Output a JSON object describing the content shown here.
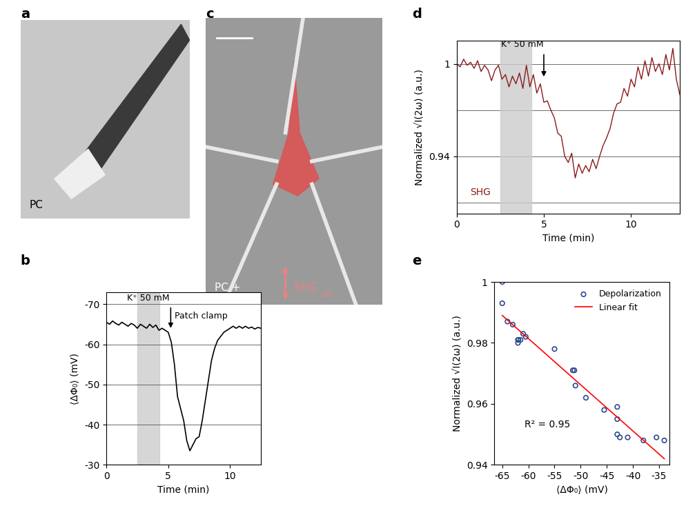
{
  "chart_data": [
    {
      "type": "line",
      "panel": "b",
      "x_label": "Time (min)",
      "y_label": "⟨ΔΦ₀⟩ (mV)",
      "x": [
        0,
        0.25,
        0.5,
        0.75,
        1,
        1.25,
        1.5,
        1.75,
        2,
        2.25,
        2.5,
        2.75,
        3,
        3.25,
        3.5,
        3.75,
        4,
        4.25,
        4.5,
        4.75,
        5,
        5.25,
        5.5,
        5.75,
        6,
        6.25,
        6.5,
        6.75,
        7,
        7.25,
        7.5,
        7.75,
        8,
        8.25,
        8.5,
        8.75,
        9,
        9.25,
        9.5,
        9.75,
        10,
        10.25,
        10.5,
        10.75,
        11,
        11.25,
        11.5,
        11.75,
        12,
        12.25,
        12.5
      ],
      "values": [
        -65.5,
        -65,
        -65.8,
        -65.2,
        -64.8,
        -65.5,
        -65,
        -64.5,
        -65.2,
        -64.8,
        -64,
        -65,
        -64.5,
        -64,
        -65,
        -64.2,
        -64.8,
        -63.5,
        -64,
        -63.5,
        -63,
        -60.5,
        -55,
        -47,
        -44,
        -41,
        -36,
        -33.5,
        -35,
        -36.5,
        -37,
        -41,
        -46,
        -51,
        -56,
        -59,
        -61,
        -62,
        -63,
        -63.5,
        -64,
        -64.5,
        -64,
        -64.5,
        -64,
        -64.5,
        -64,
        -64.3,
        -63.8,
        -64.2,
        -64
      ],
      "color": "#000000",
      "xlim": [
        0,
        12.5
      ],
      "xticks": [
        0,
        5,
        10
      ],
      "ylim": [
        -30,
        -73
      ],
      "yticks": [
        -70,
        -60,
        -50,
        -40,
        -30
      ],
      "grid": true,
      "shade": [
        2.5,
        4.3
      ],
      "shade_label": "K⁺ 50 mM",
      "arrow_x": 5.2,
      "arrow_label": "Patch clamp"
    },
    {
      "type": "line",
      "panel": "d",
      "x_label": "Time (min)",
      "y_label": "Normalized √I(2ω) (a.u.)",
      "x": [
        0,
        0.2,
        0.4,
        0.6,
        0.8,
        1.0,
        1.2,
        1.4,
        1.6,
        1.8,
        2.0,
        2.2,
        2.4,
        2.6,
        2.8,
        3.0,
        3.2,
        3.4,
        3.6,
        3.8,
        4.0,
        4.2,
        4.4,
        4.6,
        4.8,
        5.0,
        5.2,
        5.4,
        5.6,
        5.8,
        6.0,
        6.2,
        6.4,
        6.6,
        6.8,
        7.0,
        7.2,
        7.4,
        7.6,
        7.8,
        8.0,
        8.2,
        8.4,
        8.6,
        8.8,
        9.0,
        9.2,
        9.4,
        9.6,
        9.8,
        10.0,
        10.2,
        10.4,
        10.6,
        10.8,
        11.0,
        11.2,
        11.4,
        11.6,
        11.8,
        12.0,
        12.2,
        12.4,
        12.6,
        12.8
      ],
      "values": [
        1.0,
        0.998,
        1.003,
        0.999,
        1.001,
        0.997,
        1.002,
        0.995,
        0.999,
        0.996,
        0.989,
        0.996,
        0.999,
        0.99,
        0.993,
        0.985,
        0.992,
        0.987,
        0.994,
        0.984,
        0.999,
        0.985,
        0.993,
        0.981,
        0.987,
        0.975,
        0.976,
        0.97,
        0.965,
        0.955,
        0.953,
        0.94,
        0.936,
        0.942,
        0.926,
        0.935,
        0.929,
        0.934,
        0.93,
        0.938,
        0.932,
        0.94,
        0.947,
        0.952,
        0.958,
        0.968,
        0.974,
        0.975,
        0.984,
        0.979,
        0.99,
        0.985,
        0.998,
        0.99,
        1.002,
        0.992,
        1.004,
        0.995,
        1.0,
        0.993,
        1.006,
        0.996,
        1.01,
        0.99,
        0.98
      ],
      "color": "#8b1a1a",
      "xlim": [
        0,
        12.8
      ],
      "xticks": [
        0,
        5,
        10
      ],
      "ylim": [
        0.903,
        1.015
      ],
      "yticks": [
        1,
        0.94
      ],
      "hlines": [
        1,
        0.97,
        0.94,
        0.91
      ],
      "shade": [
        2.5,
        4.3
      ],
      "arrow_x": 5.0,
      "arrow_label": "K⁺ 50 mM",
      "trace_label": "SHG"
    },
    {
      "type": "scatter",
      "panel": "e",
      "x_label": "⟨ΔΦ₀⟩ (mV)",
      "y_label": "Normalized √I(2ω) (a.u.)",
      "series": [
        {
          "name": "Depolarization",
          "type": "scatter",
          "color": "#2e4a8c",
          "marker": "o",
          "x": [
            -65,
            -65,
            -64,
            -63,
            -62,
            -62,
            -61.9,
            -61.5,
            -61,
            -60.5,
            -55,
            -51.5,
            -51.2,
            -51,
            -49,
            -45.5,
            -43,
            -43,
            -43,
            -42.5,
            -41,
            -38,
            -35.5,
            -34
          ],
          "values": [
            1.0,
            0.993,
            0.987,
            0.986,
            0.981,
            0.98,
            0.981,
            0.981,
            0.983,
            0.982,
            0.978,
            0.971,
            0.971,
            0.966,
            0.962,
            0.958,
            0.959,
            0.955,
            0.95,
            0.949,
            0.949,
            0.948,
            0.949,
            0.948
          ]
        },
        {
          "name": "Linear fit",
          "type": "line",
          "color": "#ff0000",
          "x": [
            -65,
            -34
          ],
          "values": [
            0.989,
            0.942
          ]
        }
      ],
      "xlim": [
        -66.5,
        -33
      ],
      "xticks": [
        -65,
        -60,
        -55,
        -50,
        -45,
        -40,
        -35
      ],
      "ylim": [
        0.94,
        1.0
      ],
      "yticks": [
        0.94,
        0.96,
        0.98,
        1
      ],
      "legend": "upper right",
      "annotation": "R² = 0.95"
    }
  ],
  "images": [
    {
      "panel": "a",
      "label": "PC"
    },
    {
      "panel": "c",
      "label": "PC +",
      "polarization_label": "SHG",
      "polarization_subscript": "yyy"
    }
  ]
}
